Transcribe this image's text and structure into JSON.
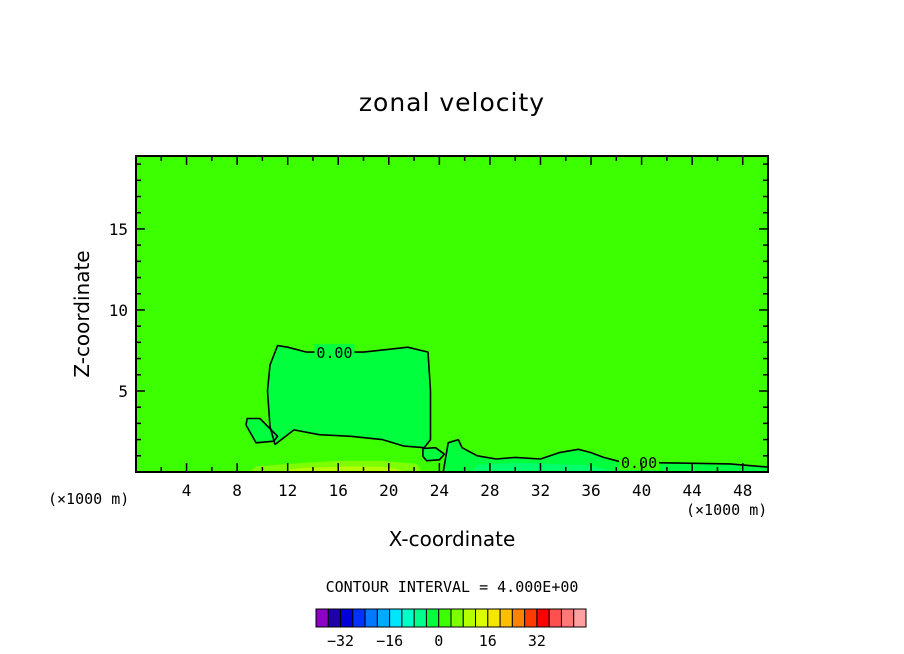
{
  "chart_data": {
    "type": "contour",
    "title": "zonal velocity",
    "xlabel": "X-coordinate",
    "ylabel": "Z-coordinate",
    "x_unit_label": "(×1000 m)",
    "xlim": [
      0,
      50
    ],
    "ylim": [
      0,
      19.5
    ],
    "x_ticks": [
      4,
      8,
      12,
      16,
      20,
      24,
      28,
      32,
      36,
      40,
      44,
      48
    ],
    "y_ticks": [
      5,
      10,
      15
    ],
    "background_value": 2,
    "contour_labels": [
      "0.00",
      "0.00"
    ],
    "regions": [
      {
        "value": -2,
        "color": "#00ff3c",
        "points": [
          [
            11,
            1.7
          ],
          [
            10.6,
            2.8
          ],
          [
            10.4,
            5.0
          ],
          [
            10.6,
            6.6
          ],
          [
            11.2,
            7.8
          ],
          [
            12.0,
            7.7
          ],
          [
            13.5,
            7.4
          ],
          [
            18,
            7.4
          ],
          [
            21.5,
            7.7
          ],
          [
            23.1,
            7.4
          ],
          [
            23.3,
            5.0
          ],
          [
            23.3,
            2.0
          ],
          [
            22.8,
            1.5
          ],
          [
            21.2,
            1.6
          ],
          [
            19.5,
            2.0
          ],
          [
            17,
            2.2
          ],
          [
            14.5,
            2.3
          ],
          [
            12.5,
            2.6
          ]
        ]
      },
      {
        "value": -2,
        "color": "#00ff3c",
        "points": [
          [
            8.7,
            2.9
          ],
          [
            8.8,
            3.3
          ],
          [
            9.8,
            3.3
          ],
          [
            11.2,
            2.2
          ],
          [
            10.9,
            1.9
          ],
          [
            9.5,
            1.8
          ]
        ]
      },
      {
        "value": -2,
        "color": "#00ff3c",
        "points": [
          [
            22.7,
            0.95
          ],
          [
            22.7,
            1.45
          ],
          [
            23.7,
            1.5
          ],
          [
            24.4,
            1.1
          ],
          [
            24.0,
            0.75
          ],
          [
            23.0,
            0.7
          ]
        ]
      },
      {
        "value": -2,
        "color": "#00ff3c",
        "points": [
          [
            24.3,
            0
          ],
          [
            24.7,
            1.8
          ],
          [
            25.5,
            2.0
          ],
          [
            25.8,
            1.5
          ],
          [
            27,
            1.0
          ],
          [
            28.5,
            0.8
          ],
          [
            30,
            0.9
          ],
          [
            32,
            0.8
          ],
          [
            33.5,
            1.2
          ],
          [
            35,
            1.4
          ],
          [
            36.0,
            1.2
          ],
          [
            37.0,
            0.9
          ],
          [
            38.5,
            0.6
          ],
          [
            43,
            0.55
          ],
          [
            47,
            0.5
          ],
          [
            50,
            0.3
          ],
          [
            50,
            0
          ]
        ]
      },
      {
        "value": -6,
        "color": "#00ff6a",
        "points": [
          [
            26.5,
            0
          ],
          [
            27,
            0.45
          ],
          [
            30,
            0.55
          ],
          [
            33,
            0.5
          ],
          [
            36,
            0.4
          ],
          [
            38,
            0
          ],
          [
            32,
            0
          ]
        ]
      },
      {
        "value": 6,
        "color": "#7dff00",
        "points": [
          [
            9,
            0
          ],
          [
            9.5,
            0.35
          ],
          [
            13,
            0.55
          ],
          [
            16,
            0.7
          ],
          [
            19.5,
            0.7
          ],
          [
            22.2,
            0.5
          ],
          [
            22.6,
            0
          ]
        ]
      },
      {
        "value": 10,
        "color": "#b4ff00",
        "points": [
          [
            11,
            0
          ],
          [
            13,
            0.25
          ],
          [
            17,
            0.35
          ],
          [
            20,
            0.3
          ],
          [
            21.5,
            0
          ]
        ]
      }
    ],
    "zero_contours": [
      [
        [
          11,
          1.7
        ],
        [
          10.6,
          2.8
        ],
        [
          10.4,
          5.0
        ],
        [
          10.6,
          6.6
        ],
        [
          11.2,
          7.8
        ],
        [
          12.0,
          7.7
        ],
        [
          13.5,
          7.4
        ],
        [
          18,
          7.4
        ],
        [
          21.5,
          7.7
        ],
        [
          23.1,
          7.4
        ],
        [
          23.3,
          5.0
        ],
        [
          23.3,
          2.0
        ],
        [
          22.8,
          1.5
        ],
        [
          21.2,
          1.6
        ],
        [
          19.5,
          2.0
        ],
        [
          17,
          2.2
        ],
        [
          14.5,
          2.3
        ],
        [
          12.5,
          2.6
        ],
        [
          11,
          1.7
        ]
      ],
      [
        [
          8.7,
          2.9
        ],
        [
          8.8,
          3.3
        ],
        [
          9.8,
          3.3
        ],
        [
          11.2,
          2.2
        ],
        [
          10.9,
          1.9
        ],
        [
          9.5,
          1.8
        ],
        [
          8.7,
          2.9
        ]
      ],
      [
        [
          22.7,
          0.95
        ],
        [
          22.7,
          1.45
        ],
        [
          23.7,
          1.5
        ],
        [
          24.4,
          1.1
        ],
        [
          24.0,
          0.75
        ],
        [
          23.0,
          0.7
        ],
        [
          22.7,
          0.95
        ]
      ],
      [
        [
          24.3,
          0
        ],
        [
          24.7,
          1.8
        ],
        [
          25.5,
          2.0
        ],
        [
          25.8,
          1.5
        ],
        [
          27,
          1.0
        ],
        [
          28.5,
          0.8
        ],
        [
          30,
          0.9
        ],
        [
          32,
          0.8
        ],
        [
          33.5,
          1.2
        ],
        [
          35,
          1.4
        ],
        [
          36.0,
          1.2
        ],
        [
          37.0,
          0.9
        ],
        [
          38.5,
          0.6
        ],
        [
          43,
          0.55
        ],
        [
          47,
          0.5
        ],
        [
          50,
          0.3
        ]
      ]
    ],
    "colorbar": {
      "caption": "CONTOUR INTERVAL = 4.000E+00",
      "tick_labels": [
        "-32",
        "-16",
        "0",
        "16",
        "32"
      ],
      "tick_values": [
        -32,
        -16,
        0,
        16,
        32
      ],
      "min": -40,
      "interval": 4,
      "colors": [
        "#8c00c8",
        "#1e00aa",
        "#0000dc",
        "#0032ff",
        "#0078ff",
        "#00aaff",
        "#00e6ff",
        "#00ffc8",
        "#00ff8c",
        "#00ff3c",
        "#3cff00",
        "#7dff00",
        "#b4ff00",
        "#dcff00",
        "#f5e600",
        "#ffbe00",
        "#ff8200",
        "#ff3c00",
        "#ff0000",
        "#ff5050",
        "#ff7878",
        "#ffa0a0"
      ]
    }
  },
  "colors": {
    "background_fill": "#3cff00",
    "contour_line": "#000000",
    "axis": "#000000"
  }
}
